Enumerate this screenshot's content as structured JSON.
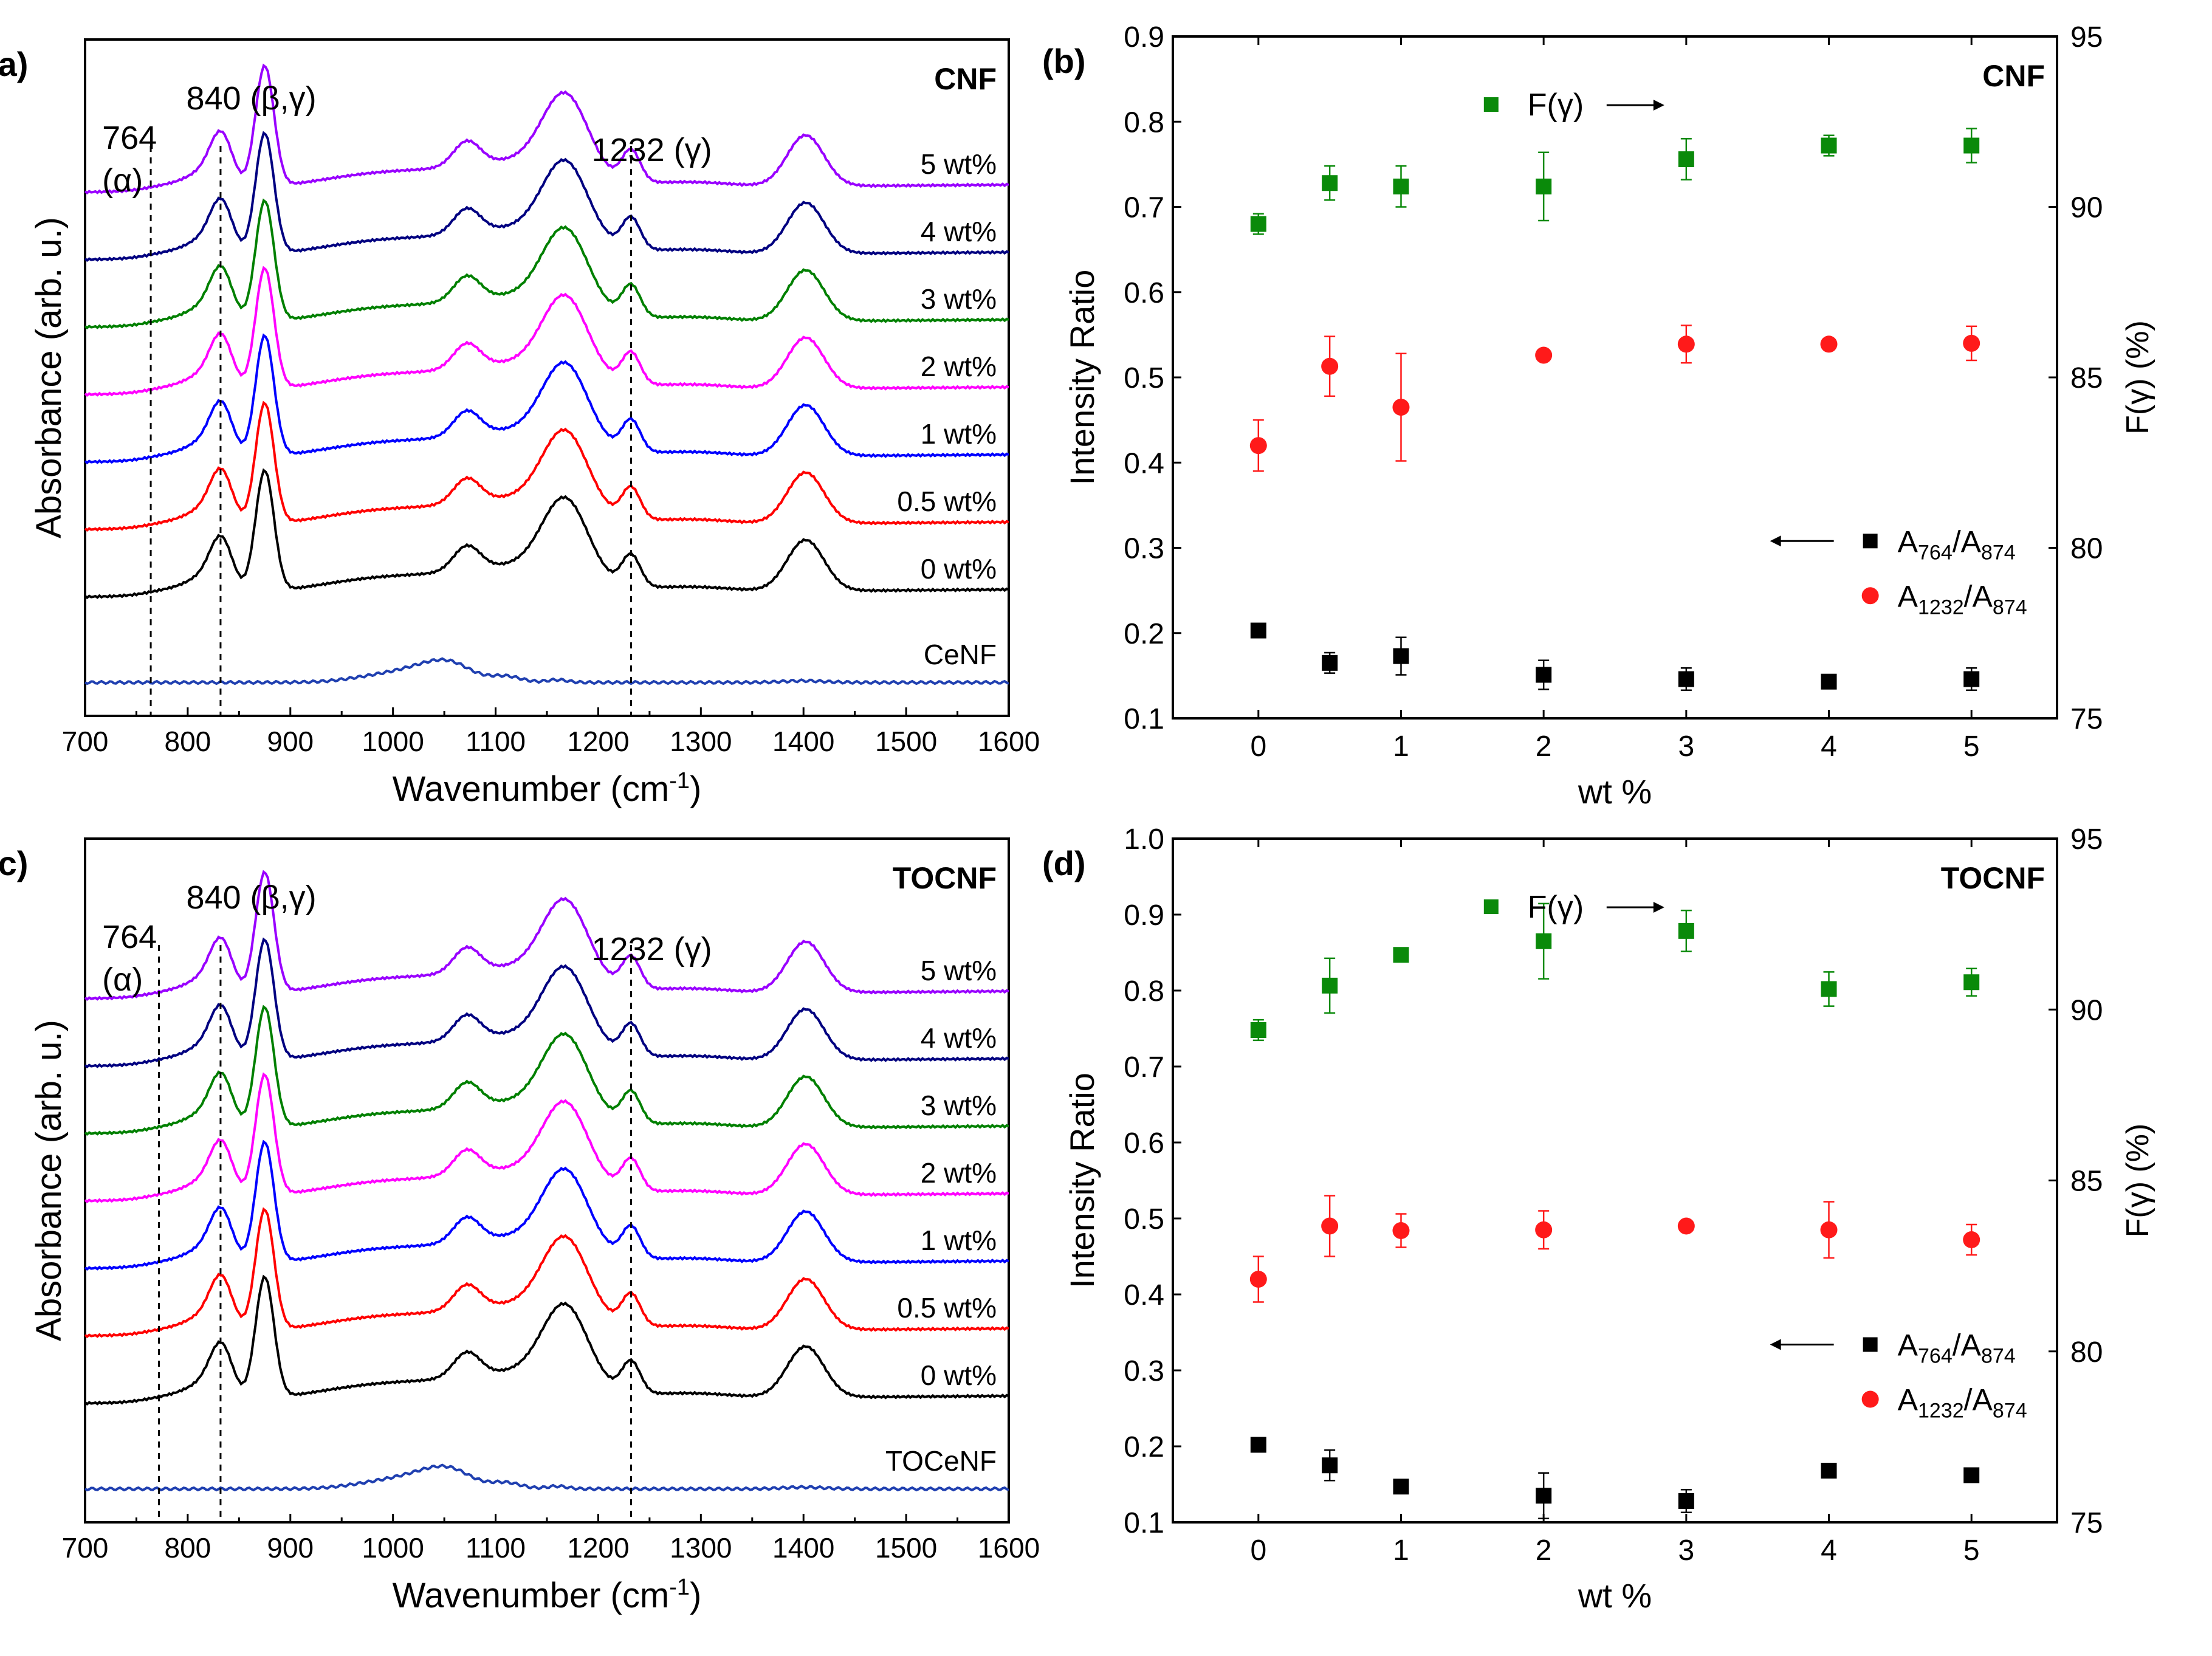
{
  "colors": {
    "black": "#000000",
    "red": "#ff0000",
    "blue": "#0000ff",
    "magenta": "#ff00ff",
    "green": "#008000",
    "navy": "#000080",
    "purple": "#9900ff",
    "ceBlue": "#1f3fb0",
    "markerGreen": "#0a8a0a",
    "markerRed": "#ff1a1a",
    "markerBlack": "#000000"
  },
  "chart_data": [
    {
      "type": "line",
      "panel_label": "(a)",
      "corner_label": "CNF",
      "xlabel": "Wavenumber (cm",
      "xlabel_sup": "-1",
      "xlabel_tail": ")",
      "ylabel": "Absorbance (arb. u.)",
      "xlim": [
        700,
        1600
      ],
      "xticks": [
        "700",
        "800",
        "900",
        "1000",
        "1100",
        "1200",
        "1300",
        "1400",
        "1500",
        "1600"
      ],
      "annotations": [
        {
          "text": "764",
          "x": 764
        },
        {
          "text": "(α)",
          "x": 764
        },
        {
          "text": "840 (β,γ)",
          "x": 840
        },
        {
          "text": "1232 (γ)",
          "x": 1232
        }
      ],
      "reference_lines": [
        764,
        832,
        1232
      ],
      "series": [
        {
          "name": "5 wt%",
          "color_key": "purple",
          "baseline": 7,
          "scale": 1.0
        },
        {
          "name": "4 wt%",
          "color_key": "navy",
          "baseline": 6,
          "scale": 1.0
        },
        {
          "name": "3 wt%",
          "color_key": "green",
          "baseline": 5,
          "scale": 1.0
        },
        {
          "name": "2 wt%",
          "color_key": "magenta",
          "baseline": 4,
          "scale": 1.0
        },
        {
          "name": "1 wt%",
          "color_key": "blue",
          "baseline": 3,
          "scale": 1.0
        },
        {
          "name": "0.5 wt%",
          "color_key": "red",
          "baseline": 2,
          "scale": 1.0
        },
        {
          "name": "0 wt%",
          "color_key": "black",
          "baseline": 1,
          "scale": 1.0
        },
        {
          "name": "CeNF",
          "color_key": "ceBlue",
          "baseline": 0,
          "scale": 0.0
        }
      ]
    },
    {
      "type": "scatter",
      "panel_label": "(b)",
      "corner_label": "CNF",
      "xlabel": "wt %",
      "ylabel": "Intensity Ratio",
      "y2label": "F(γ) (%)",
      "xlim": [
        -0.6,
        5.6
      ],
      "ylim": [
        0.1,
        0.9
      ],
      "y2lim": [
        75,
        95
      ],
      "xticks": [
        "0",
        "1",
        "2",
        "3",
        "4",
        "5"
      ],
      "yticks": [
        "0.1",
        "0.2",
        "0.3",
        "0.4",
        "0.5",
        "0.6",
        "0.7",
        "0.8",
        "0.9"
      ],
      "y2ticks": [
        "75",
        "80",
        "85",
        "90",
        "95"
      ],
      "x": [
        0,
        0.5,
        1,
        2,
        3,
        4,
        5
      ],
      "series": [
        {
          "name": "F(γ)",
          "axis": "right",
          "marker": "square",
          "color_key": "markerGreen",
          "values": [
            89.5,
            90.7,
            90.6,
            90.6,
            91.4,
            91.8,
            91.8
          ],
          "errors": [
            0.3,
            0.5,
            0.6,
            1.0,
            0.6,
            0.3,
            0.5
          ]
        },
        {
          "name": "A764/A874",
          "axis": "left",
          "marker": "square",
          "color_key": "markerBlack",
          "values": [
            0.203,
            0.165,
            0.173,
            0.151,
            0.146,
            0.143,
            0.146
          ],
          "errors": [
            0.008,
            0.012,
            0.022,
            0.017,
            0.013,
            0.006,
            0.013
          ]
        },
        {
          "name": "A1232/A874",
          "axis": "left",
          "marker": "circle",
          "color_key": "markerRed",
          "values": [
            0.42,
            0.513,
            0.465,
            0.526,
            0.539,
            0.539,
            0.54
          ],
          "errors": [
            0.03,
            0.035,
            0.063,
            0.005,
            0.022,
            0.005,
            0.02
          ]
        }
      ],
      "legend": {
        "top": {
          "label": "F(γ)",
          "arrow": "right"
        },
        "bottom": [
          {
            "label_main": "A",
            "sub1": "764",
            "mid": "/A",
            "sub2": "874",
            "arrow": "left"
          },
          {
            "label_main": "A",
            "sub1": "1232",
            "mid": "/A",
            "sub2": "874"
          }
        ]
      }
    },
    {
      "type": "line",
      "panel_label": "(c)",
      "corner_label": "TOCNF",
      "xlabel": "Wavenumber (cm",
      "xlabel_sup": "-1",
      "xlabel_tail": ")",
      "ylabel": "Absorbance (arb. u.)",
      "xlim": [
        700,
        1600
      ],
      "xticks": [
        "700",
        "800",
        "900",
        "1000",
        "1100",
        "1200",
        "1300",
        "1400",
        "1500",
        "1600"
      ],
      "annotations": [
        {
          "text": "764",
          "x": 764
        },
        {
          "text": "(α)",
          "x": 764
        },
        {
          "text": "840 (β,γ)",
          "x": 840
        },
        {
          "text": "1232 (γ)",
          "x": 1232
        }
      ],
      "reference_lines": [
        772,
        832,
        1232
      ],
      "series": [
        {
          "name": "5 wt%",
          "color_key": "purple",
          "baseline": 7,
          "scale": 1.0
        },
        {
          "name": "4 wt%",
          "color_key": "navy",
          "baseline": 6,
          "scale": 1.0
        },
        {
          "name": "3 wt%",
          "color_key": "green",
          "baseline": 5,
          "scale": 1.0
        },
        {
          "name": "2 wt%",
          "color_key": "magenta",
          "baseline": 4,
          "scale": 1.0
        },
        {
          "name": "1 wt%",
          "color_key": "blue",
          "baseline": 3,
          "scale": 1.0
        },
        {
          "name": "0.5 wt%",
          "color_key": "red",
          "baseline": 2,
          "scale": 1.0
        },
        {
          "name": "0 wt%",
          "color_key": "black",
          "baseline": 1,
          "scale": 1.0
        },
        {
          "name": "TOCeNF",
          "color_key": "ceBlue",
          "baseline": 0,
          "scale": 0.0
        }
      ]
    },
    {
      "type": "scatter",
      "panel_label": "(d)",
      "corner_label": "TOCNF",
      "xlabel": "wt %",
      "ylabel": "Intensity Ratio",
      "y2label": "F(γ) (%)",
      "xlim": [
        -0.6,
        5.6
      ],
      "ylim": [
        0.1,
        1.0
      ],
      "y2lim": [
        75,
        95
      ],
      "xticks": [
        "0",
        "1",
        "2",
        "3",
        "4",
        "5"
      ],
      "yticks": [
        "0.1",
        "0.2",
        "0.3",
        "0.4",
        "0.5",
        "0.6",
        "0.7",
        "0.8",
        "0.9",
        "1.0"
      ],
      "y2ticks": [
        "75",
        "80",
        "85",
        "90",
        "95"
      ],
      "x": [
        0,
        0.5,
        1,
        2,
        3,
        4,
        5
      ],
      "series": [
        {
          "name": "F(γ)",
          "axis": "right",
          "marker": "square",
          "color_key": "markerGreen",
          "values": [
            89.4,
            90.7,
            91.6,
            92.0,
            92.3,
            90.6,
            90.8
          ],
          "errors": [
            0.3,
            0.8,
            0.2,
            1.1,
            0.6,
            0.5,
            0.4
          ]
        },
        {
          "name": "A764/A874",
          "axis": "left",
          "marker": "square",
          "color_key": "markerBlack",
          "values": [
            0.202,
            0.175,
            0.147,
            0.135,
            0.128,
            0.168,
            0.162
          ],
          "errors": [
            0.005,
            0.02,
            0.005,
            0.03,
            0.015,
            0.008,
            0.008
          ]
        },
        {
          "name": "A1232/A874",
          "axis": "left",
          "marker": "circle",
          "color_key": "markerRed",
          "values": [
            0.42,
            0.49,
            0.484,
            0.485,
            0.49,
            0.485,
            0.472
          ],
          "errors": [
            0.03,
            0.04,
            0.022,
            0.025,
            0.005,
            0.037,
            0.02
          ]
        }
      ],
      "legend": {
        "top": {
          "label": "F(γ)",
          "arrow": "right"
        },
        "bottom": [
          {
            "label_main": "A",
            "sub1": "764",
            "mid": "/A",
            "sub2": "874",
            "arrow": "left"
          },
          {
            "label_main": "A",
            "sub1": "1232",
            "mid": "/A",
            "sub2": "874"
          }
        ]
      }
    }
  ]
}
